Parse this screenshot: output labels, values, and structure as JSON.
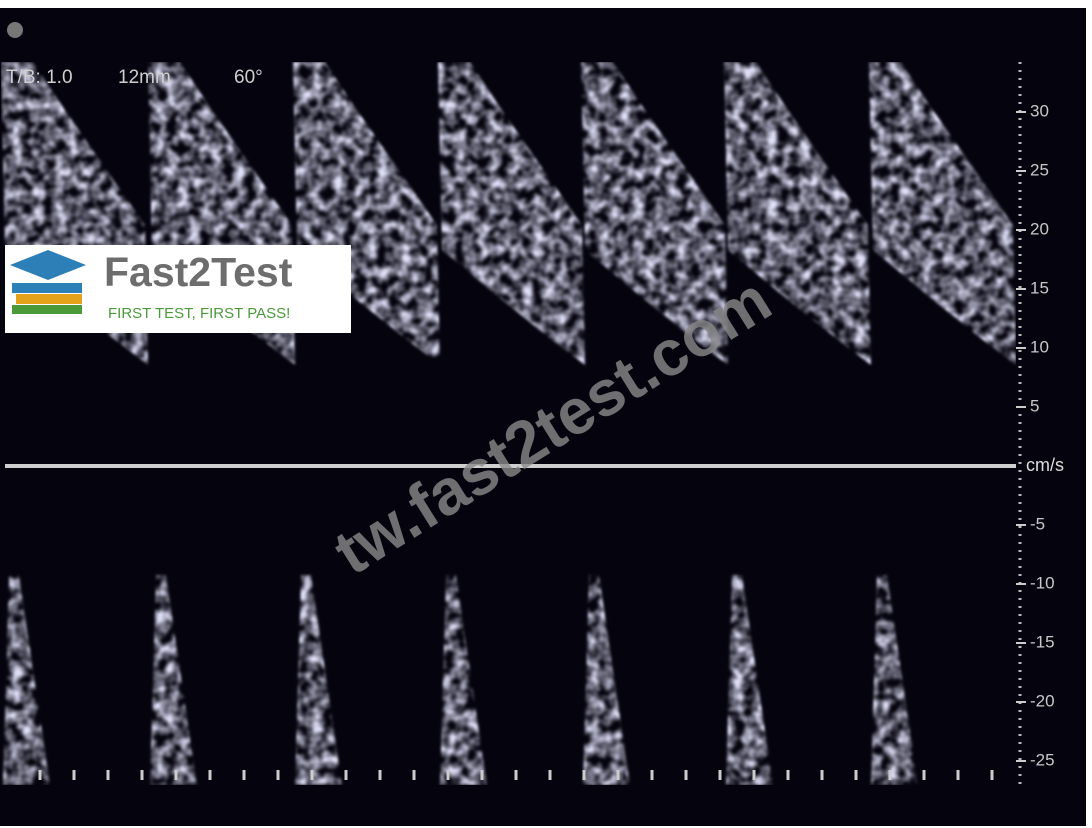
{
  "header": {
    "settings": [
      "T/B: 1.0",
      "12mm",
      "60°"
    ]
  },
  "scale": {
    "ticks": [
      30,
      25,
      20,
      15,
      10,
      5,
      -5,
      -10,
      -15,
      -20,
      -25
    ],
    "unit": "cm/s"
  },
  "logo": {
    "name": "Fast2Test",
    "slogan": "FIRST TEST, FIRST PASS!"
  },
  "watermark": "tw.fast2test.com"
}
